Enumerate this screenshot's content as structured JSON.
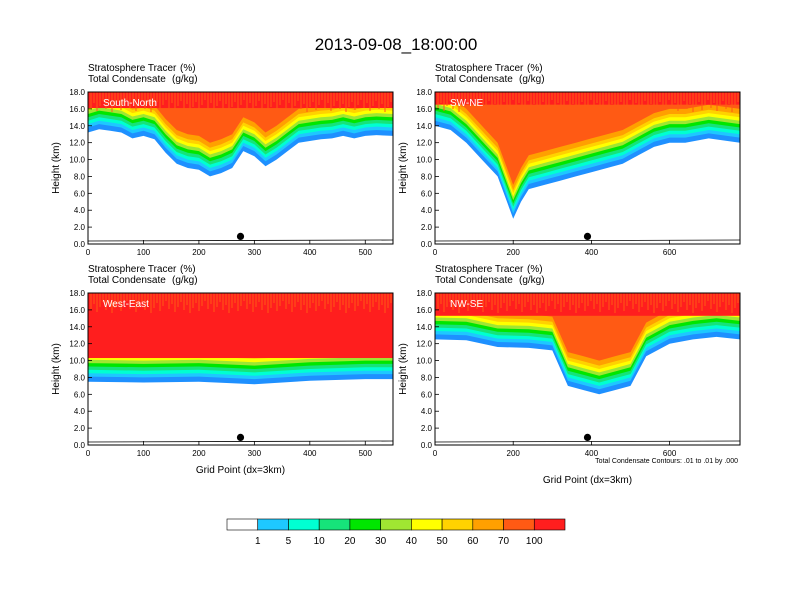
{
  "title": "2013-09-08_18:00:00",
  "colors": {
    "scale": [
      "#ffffff",
      "#1e90ff",
      "#1ec8ff",
      "#00ffd2",
      "#16e37a",
      "#00e600",
      "#a0e632",
      "#ffff00",
      "#ffd200",
      "#ffa000",
      "#ff5a14",
      "#ff1e1e"
    ]
  },
  "colorbar": {
    "labels": [
      "1",
      "5",
      "10",
      "20",
      "30",
      "40",
      "50",
      "60",
      "70",
      "100"
    ]
  },
  "footnote": "Total Condensate Contours: .01 to .01 by .000",
  "chart_data": [
    {
      "type": "heatmap",
      "panel_label": "South-North",
      "subtitle_line1": "Stratosphere Tracer",
      "subtitle_unit1": "(%)",
      "subtitle_line2": "Total Condensate",
      "subtitle_unit2": "(g/kg)",
      "ylabel": "Height (km)",
      "xlabel": "",
      "xlim": [
        0,
        550
      ],
      "ylim": [
        0,
        18
      ],
      "xticks": [
        0,
        100,
        200,
        300,
        400,
        500
      ],
      "yticks": [
        "0.0",
        "2.0",
        "4.0",
        "6.0",
        "8.0",
        "10.0",
        "12.0",
        "14.0",
        "16.0",
        "18.0"
      ],
      "marker_x": 275,
      "tracer_bottom_km": {
        "x": [
          0,
          20,
          40,
          60,
          80,
          100,
          120,
          140,
          160,
          180,
          200,
          220,
          240,
          260,
          280,
          300,
          320,
          340,
          360,
          380,
          400,
          420,
          440,
          460,
          480,
          500,
          520,
          550
        ],
        "y": [
          13.2,
          13.6,
          13.4,
          13.2,
          12.5,
          12.8,
          12.4,
          10.8,
          9.5,
          9.0,
          8.8,
          8.0,
          8.4,
          9.0,
          11.0,
          10.4,
          9.2,
          10.0,
          11.0,
          12.0,
          12.2,
          12.4,
          12.5,
          12.8,
          12.5,
          12.8,
          12.9,
          12.8
        ]
      }
    },
    {
      "type": "heatmap",
      "panel_label": "SW-NE",
      "subtitle_line1": "Stratosphere Tracer",
      "subtitle_unit1": "(%)",
      "subtitle_line2": "Total Condensate",
      "subtitle_unit2": "(g/kg)",
      "ylabel": "Height (km)",
      "xlabel": "",
      "xlim": [
        0,
        780
      ],
      "ylim": [
        0,
        18
      ],
      "xticks": [
        0,
        200,
        400,
        600
      ],
      "yticks": [
        "0.0",
        "2.0",
        "4.0",
        "6.0",
        "8.0",
        "10.0",
        "12.0",
        "14.0",
        "16.0",
        "18.0"
      ],
      "marker_x": 390,
      "tracer_bottom_km": {
        "x": [
          0,
          40,
          80,
          120,
          160,
          200,
          220,
          240,
          280,
          320,
          360,
          400,
          440,
          480,
          520,
          560,
          600,
          640,
          700,
          780
        ],
        "y": [
          14.0,
          13.5,
          12.0,
          10.0,
          8.0,
          3.0,
          5.0,
          6.5,
          7.0,
          7.5,
          8.0,
          8.5,
          9.0,
          9.5,
          10.5,
          11.5,
          12.0,
          12.0,
          12.5,
          12.0
        ]
      }
    },
    {
      "type": "heatmap",
      "panel_label": "West-East",
      "subtitle_line1": "Stratosphere Tracer",
      "subtitle_unit1": "(%)",
      "subtitle_line2": "Total Condensate",
      "subtitle_unit2": "(g/kg)",
      "ylabel": "Height (km)",
      "xlabel": "Grid Point (dx=3km)",
      "xlim": [
        0,
        550
      ],
      "ylim": [
        0,
        18
      ],
      "xticks": [
        0,
        100,
        200,
        300,
        400,
        500
      ],
      "yticks": [
        "0.0",
        "2.0",
        "4.0",
        "6.0",
        "8.0",
        "10.0",
        "12.0",
        "14.0",
        "16.0",
        "18.0"
      ],
      "marker_x": 275,
      "tracer_bottom_km": {
        "x": [
          0,
          100,
          200,
          300,
          400,
          500,
          550
        ],
        "y": [
          7.5,
          7.4,
          7.5,
          7.2,
          7.6,
          7.8,
          7.8
        ]
      }
    },
    {
      "type": "heatmap",
      "panel_label": "NW-SE",
      "subtitle_line1": "Stratosphere Tracer",
      "subtitle_unit1": "(%)",
      "subtitle_line2": "Total Condensate",
      "subtitle_unit2": "(g/kg)",
      "ylabel": "Height (km)",
      "xlabel": "Grid Point (dx=3km)",
      "xlim": [
        0,
        780
      ],
      "ylim": [
        0,
        18
      ],
      "xticks": [
        0,
        200,
        400,
        600
      ],
      "yticks": [
        "0.0",
        "2.0",
        "4.0",
        "6.0",
        "8.0",
        "10.0",
        "12.0",
        "14.0",
        "16.0",
        "18.0"
      ],
      "marker_x": 390,
      "tracer_bottom_km": {
        "x": [
          0,
          80,
          160,
          240,
          300,
          340,
          380,
          420,
          460,
          500,
          540,
          600,
          660,
          720,
          780
        ],
        "y": [
          12.5,
          12.4,
          11.6,
          11.5,
          11.2,
          7.0,
          6.5,
          6.0,
          6.5,
          7.0,
          10.5,
          12.0,
          12.5,
          12.8,
          12.5
        ]
      }
    }
  ]
}
